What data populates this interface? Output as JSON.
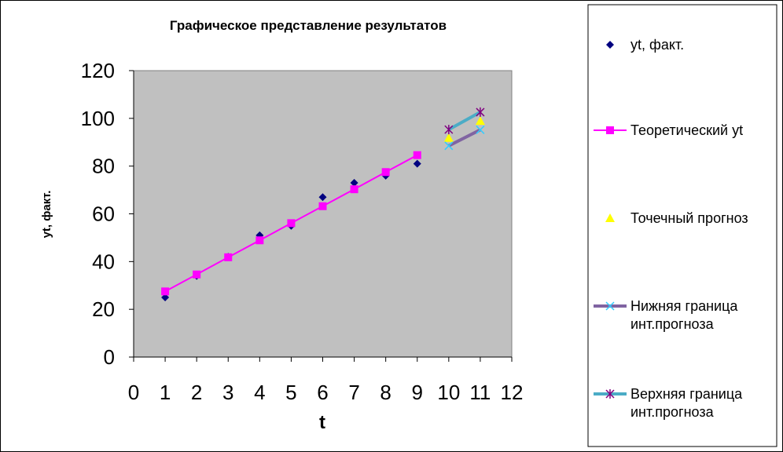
{
  "chart_data": {
    "type": "scatter",
    "title": "Графическое представление результатов",
    "xlabel": "t",
    "ylabel": "yt, факт.",
    "xlim": [
      0,
      12
    ],
    "ylim": [
      0,
      120
    ],
    "x_ticks": [
      "0",
      "1",
      "2",
      "3",
      "4",
      "5",
      "6",
      "7",
      "8",
      "9",
      "10",
      "11",
      "12"
    ],
    "y_ticks": [
      "0",
      "20",
      "40",
      "60",
      "80",
      "100",
      "120"
    ],
    "grid": false,
    "plot_background": "#c0c0c0",
    "legend_position": "right",
    "series": [
      {
        "name": "yt, факт.",
        "kind": "markers",
        "marker": "diamond",
        "color": "#000080",
        "x": [
          1,
          2,
          3,
          4,
          5,
          6,
          7,
          8,
          9
        ],
        "y": [
          25,
          34,
          42,
          51,
          55,
          67,
          73,
          76,
          81
        ]
      },
      {
        "name": "Теоретический yt",
        "kind": "line+markers",
        "marker": "square",
        "color": "#ff00ff",
        "x": [
          1,
          2,
          3,
          4,
          5,
          6,
          7,
          8,
          9
        ],
        "y": [
          27.5,
          34.6,
          41.8,
          48.9,
          56.1,
          63.2,
          70.3,
          77.5,
          84.6
        ]
      },
      {
        "name": "Точечный прогноз",
        "kind": "markers",
        "marker": "triangle",
        "color": "#ffff00",
        "x": [
          10,
          11
        ],
        "y": [
          91.8,
          98.9
        ]
      },
      {
        "name": "Нижняя граница инт.прогноза",
        "legend_lines": [
          "Нижняя граница",
          "инт.прогноза"
        ],
        "kind": "line+markers",
        "marker": "x",
        "color": "#8064a2",
        "marker_color": "#33ccff",
        "x": [
          10,
          11
        ],
        "y": [
          88.5,
          95.2
        ]
      },
      {
        "name": "Верхняя граница инт.прогноза",
        "legend_lines": [
          "Верхняя граница",
          "инт.прогноза"
        ],
        "kind": "line+markers",
        "marker": "star",
        "color": "#4bacc6",
        "marker_color": "#800080",
        "x": [
          10,
          11
        ],
        "y": [
          95.3,
          102.6
        ]
      }
    ]
  }
}
